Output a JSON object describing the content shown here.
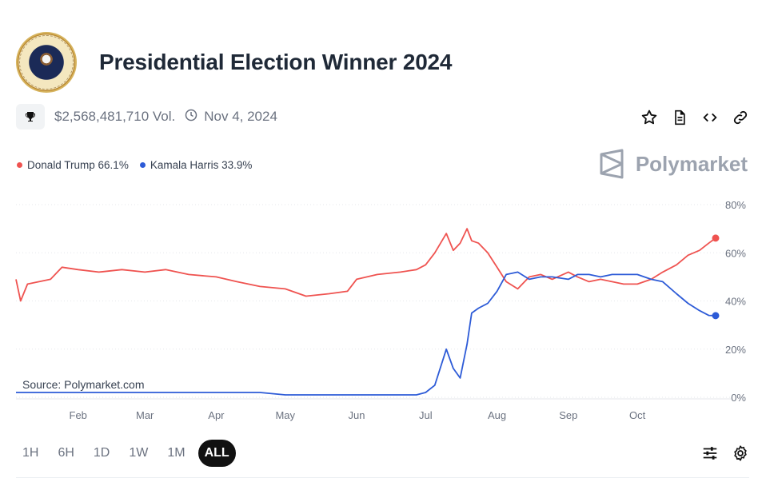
{
  "market": {
    "title": "Presidential Election Winner 2024",
    "volume": "$2,568,481,710 Vol.",
    "end_date": "Nov 4, 2024"
  },
  "icons": {
    "seal": "presidential-seal-icon",
    "trophy": "trophy-icon",
    "clock": "clock-icon",
    "star": "star-icon",
    "document": "document-icon",
    "embed": "code-icon",
    "link": "link-icon",
    "filters": "sliders-icon",
    "settings": "gear-icon"
  },
  "legend": {
    "trump": "Donald Trump 66.1%",
    "harris": "Kamala Harris 33.9%"
  },
  "brand": {
    "name": "Polymarket"
  },
  "source_label": "Source: Polymarket.com",
  "ranges": [
    "1H",
    "6H",
    "1D",
    "1W",
    "1M",
    "ALL"
  ],
  "active_range": "ALL",
  "colors": {
    "trump": "#ef5350",
    "harris": "#2d5bd7",
    "grid": "#e5e7eb",
    "muted": "#9ca3af"
  },
  "chart_data": {
    "type": "line",
    "title": "",
    "xlabel": "",
    "ylabel": "",
    "x_ticks": [
      "Feb",
      "Mar",
      "Apr",
      "May",
      "Jun",
      "Jul",
      "Aug",
      "Sep",
      "Oct"
    ],
    "y_ticks": [
      "80%",
      "60%",
      "40%",
      "20%",
      "0%"
    ],
    "ylim": [
      0,
      80
    ],
    "x": [
      "2024-01-05",
      "2024-01-07",
      "2024-01-10",
      "2024-01-15",
      "2024-01-20",
      "2024-01-25",
      "2024-02-01",
      "2024-02-10",
      "2024-02-20",
      "2024-03-01",
      "2024-03-10",
      "2024-03-20",
      "2024-04-01",
      "2024-04-10",
      "2024-04-20",
      "2024-05-01",
      "2024-05-10",
      "2024-05-20",
      "2024-05-28",
      "2024-06-01",
      "2024-06-10",
      "2024-06-20",
      "2024-06-27",
      "2024-07-01",
      "2024-07-05",
      "2024-07-10",
      "2024-07-13",
      "2024-07-16",
      "2024-07-19",
      "2024-07-21",
      "2024-07-24",
      "2024-07-28",
      "2024-08-01",
      "2024-08-05",
      "2024-08-10",
      "2024-08-15",
      "2024-08-20",
      "2024-08-25",
      "2024-09-01",
      "2024-09-05",
      "2024-09-10",
      "2024-09-15",
      "2024-09-20",
      "2024-09-25",
      "2024-10-01",
      "2024-10-07",
      "2024-10-12",
      "2024-10-18",
      "2024-10-23",
      "2024-10-28",
      "2024-11-01",
      "2024-11-04"
    ],
    "series": [
      {
        "name": "Donald Trump",
        "color": "#ef5350",
        "values": [
          49,
          40,
          47,
          48,
          49,
          54,
          53,
          52,
          53,
          52,
          53,
          51,
          50,
          48,
          46,
          45,
          42,
          43,
          44,
          49,
          51,
          52,
          53,
          55,
          60,
          68,
          61,
          64,
          70,
          65,
          64,
          60,
          54,
          48,
          45,
          50,
          51,
          49,
          52,
          50,
          48,
          49,
          48,
          47,
          47,
          49,
          52,
          55,
          59,
          61,
          64,
          66.1
        ]
      },
      {
        "name": "Kamala Harris",
        "color": "#2d5bd7",
        "values": [
          2,
          2,
          2,
          2,
          2,
          2,
          2,
          2,
          2,
          2,
          2,
          2,
          2,
          2,
          2,
          1,
          1,
          1,
          1,
          1,
          1,
          1,
          1,
          2,
          5,
          20,
          12,
          8,
          22,
          35,
          37,
          39,
          44,
          51,
          52,
          49,
          50,
          50,
          49,
          51,
          51,
          50,
          51,
          51,
          51,
          49,
          48,
          43,
          39,
          36,
          34,
          33.9
        ]
      }
    ]
  }
}
